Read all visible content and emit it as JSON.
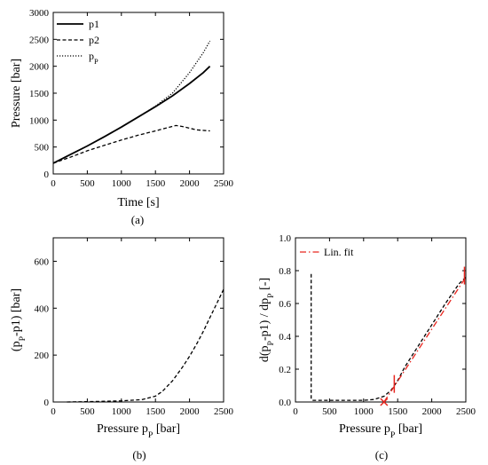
{
  "captions": {
    "a": "(a)",
    "b": "(b)",
    "c": "(c)"
  },
  "chart_data": [
    {
      "id": "a",
      "type": "line",
      "xlabel": "Time [s]",
      "ylabel": "Pressure [bar]",
      "xlim": [
        0,
        2500
      ],
      "ylim": [
        0,
        3000
      ],
      "xticks": [
        0,
        500,
        1000,
        1500,
        2000,
        2500
      ],
      "yticks": [
        0,
        500,
        1000,
        1500,
        2000,
        2500,
        3000
      ],
      "legend": "top-left",
      "series": [
        {
          "name": "p1",
          "style": "solid",
          "x": [
            0,
            250,
            500,
            750,
            1000,
            1250,
            1500,
            1750,
            2000,
            2200,
            2300
          ],
          "y": [
            200,
            360,
            520,
            690,
            870,
            1060,
            1250,
            1450,
            1680,
            1880,
            2000
          ]
        },
        {
          "name": "p2",
          "style": "dashed",
          "x": [
            0,
            250,
            500,
            750,
            1000,
            1250,
            1500,
            1800,
            1900,
            2100,
            2300
          ],
          "y": [
            200,
            310,
            430,
            530,
            630,
            720,
            800,
            900,
            880,
            820,
            800
          ]
        },
        {
          "name_base": "p",
          "name_sub": "P",
          "style": "dotted",
          "x": [
            0,
            250,
            500,
            750,
            1000,
            1250,
            1500,
            1750,
            2000,
            2200,
            2300
          ],
          "y": [
            200,
            360,
            520,
            690,
            870,
            1060,
            1260,
            1500,
            1880,
            2250,
            2470
          ]
        }
      ]
    },
    {
      "id": "b",
      "type": "line",
      "xlabel_base": "Pressure p",
      "xlabel_sub": "P",
      "xlabel_unit": " [bar]",
      "ylabel_parts": [
        "(p",
        "P",
        "-p1) [bar]"
      ],
      "xlim": [
        0,
        2500
      ],
      "ylim": [
        0,
        700
      ],
      "xticks": [
        0,
        500,
        1000,
        1500,
        2000,
        2500
      ],
      "yticks": [
        0,
        200,
        400,
        600
      ],
      "series": [
        {
          "style": "dashed",
          "x": [
            200,
            600,
            1000,
            1300,
            1500,
            1600,
            1750,
            1900,
            2000,
            2100,
            2200,
            2300,
            2400,
            2500
          ],
          "y": [
            0,
            2,
            5,
            10,
            25,
            45,
            90,
            150,
            195,
            245,
            300,
            360,
            420,
            480
          ]
        }
      ]
    },
    {
      "id": "c",
      "type": "line",
      "xlabel_base": "Pressure p",
      "xlabel_sub": "P",
      "xlabel_unit": " [bar]",
      "ylabel_parts": [
        "d(p",
        "P",
        "-p1) / dp",
        "P",
        " [-]"
      ],
      "xlim": [
        0,
        2500
      ],
      "ylim": [
        0,
        1.0
      ],
      "xticks": [
        0,
        500,
        1000,
        1500,
        2000,
        2500
      ],
      "yticks": [
        0.0,
        0.2,
        0.4,
        0.6,
        0.8,
        1.0
      ],
      "ytick_labels": [
        "0.0",
        "0.2",
        "0.4",
        "0.6",
        "0.8",
        "1.0"
      ],
      "legend": "top-left",
      "series": [
        {
          "style": "dashed",
          "x": [
            230,
            230,
            250,
            500,
            1000,
            1150,
            1300,
            1400,
            1500,
            1600,
            1800,
            2000,
            2200,
            2400,
            2500
          ],
          "y": [
            0.78,
            0.02,
            0.01,
            0.01,
            0.01,
            0.015,
            0.035,
            0.07,
            0.13,
            0.21,
            0.34,
            0.47,
            0.6,
            0.72,
            0.76
          ]
        },
        {
          "name": "Lin. fit",
          "style": "dashdot",
          "color": "#e8261f",
          "x": [
            1300,
            2500
          ],
          "y": [
            0.0,
            0.76
          ]
        }
      ],
      "markers": [
        {
          "kind": "x",
          "x": 1300,
          "y": 0.0,
          "color": "#e8261f"
        },
        {
          "kind": "vline",
          "x": 1450,
          "y": 0.11,
          "color": "#e8261f"
        },
        {
          "kind": "vline",
          "x": 2480,
          "y": 0.77,
          "color": "#e8261f"
        }
      ]
    }
  ]
}
